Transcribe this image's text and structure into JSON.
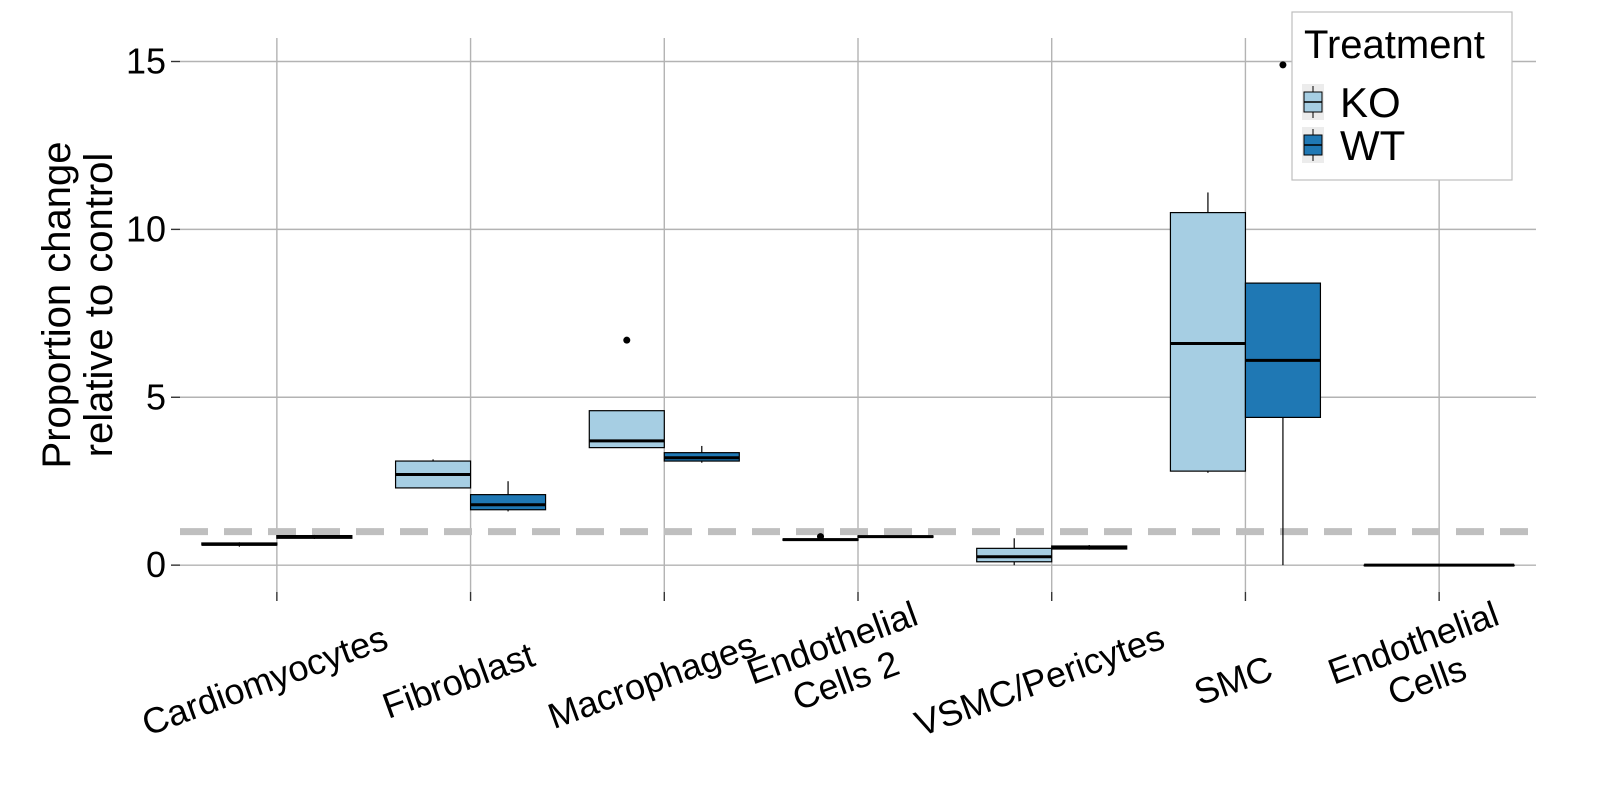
{
  "chart_data": {
    "type": "box",
    "ylabel_lines": [
      "Proportion change",
      "relative to control"
    ],
    "xlabel": "",
    "ylim": [
      -0.8,
      15.7
    ],
    "yticks": [
      0,
      5,
      10,
      15
    ],
    "grid": true,
    "reference_line": {
      "y": 1,
      "style": "dashed",
      "color": "#bfbfbf"
    },
    "categories": [
      {
        "lines": [
          "Cardiomyocytes"
        ]
      },
      {
        "lines": [
          "Fibroblast"
        ]
      },
      {
        "lines": [
          "Macrophages"
        ]
      },
      {
        "lines": [
          "Endothelial",
          "Cells 2"
        ]
      },
      {
        "lines": [
          "VSMC/Pericytes"
        ]
      },
      {
        "lines": [
          "SMC"
        ]
      },
      {
        "lines": [
          "Endothelial",
          "Cells"
        ]
      }
    ],
    "legend": {
      "title": "Treatment",
      "placement": "top-right"
    },
    "series": [
      {
        "name": "KO",
        "color": "#a6cee3",
        "boxes": [
          {
            "min": 0.55,
            "q1": 0.6,
            "median": 0.62,
            "q3": 0.66,
            "max": 0.68,
            "outliers": []
          },
          {
            "min": 2.3,
            "q1": 2.3,
            "median": 2.7,
            "q3": 3.1,
            "max": 3.15,
            "outliers": []
          },
          {
            "min": 3.5,
            "q1": 3.5,
            "median": 3.7,
            "q3": 4.6,
            "max": 4.6,
            "outliers": [
              6.7
            ]
          },
          {
            "min": 0.73,
            "q1": 0.74,
            "median": 0.76,
            "q3": 0.78,
            "max": 0.8,
            "outliers": [
              0.85
            ]
          },
          {
            "min": 0.0,
            "q1": 0.1,
            "median": 0.25,
            "q3": 0.5,
            "max": 0.8,
            "outliers": []
          },
          {
            "min": 2.75,
            "q1": 2.8,
            "median": 6.6,
            "q3": 10.5,
            "max": 11.1,
            "outliers": []
          },
          {
            "min": 0,
            "q1": 0,
            "median": 0,
            "q3": 0,
            "max": 0,
            "outliers": []
          }
        ]
      },
      {
        "name": "WT",
        "color": "#1f78b4",
        "boxes": [
          {
            "min": 0.78,
            "q1": 0.8,
            "median": 0.84,
            "q3": 0.88,
            "max": 0.9,
            "outliers": []
          },
          {
            "min": 1.6,
            "q1": 1.65,
            "median": 1.8,
            "q3": 2.1,
            "max": 2.5,
            "outliers": []
          },
          {
            "min": 3.05,
            "q1": 3.1,
            "median": 3.2,
            "q3": 3.35,
            "max": 3.55,
            "outliers": []
          },
          {
            "min": 0.82,
            "q1": 0.83,
            "median": 0.85,
            "q3": 0.87,
            "max": 0.88,
            "outliers": []
          },
          {
            "min": 0.46,
            "q1": 0.48,
            "median": 0.53,
            "q3": 0.57,
            "max": 0.6,
            "outliers": []
          },
          {
            "min": 0.0,
            "q1": 4.4,
            "median": 6.1,
            "q3": 8.4,
            "max": 8.4,
            "outliers": [
              14.9
            ]
          },
          {
            "min": 0,
            "q1": 0,
            "median": 0,
            "q3": 0,
            "max": 0,
            "outliers": []
          }
        ]
      }
    ]
  }
}
